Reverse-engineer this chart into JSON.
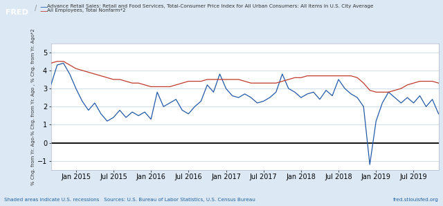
{
  "title_line1": "Advance Retail Sales: Retail and Food Services, Total-Consumer Price Index for All Urban Consumers: All Items in U.S. City Average",
  "title_line2": "All Employees, Total Nonfarm*2",
  "ylabel": "% Chg. from Yr. Ago-% Chg. from Yr. Ago , % Chg. from Yr. Ago*2",
  "footer_left": "Shaded areas indicate U.S. recessions   Sources: U.S. Bureau of Labor Statistics, U.S. Census Bureau",
  "footer_right": "fred.stlouisfed.org",
  "background_color": "#dce9f5",
  "plot_background": "#ffffff",
  "ylim": [
    -1.5,
    5.5
  ],
  "yticks": [
    -1,
    0,
    1,
    2,
    3,
    4,
    5
  ],
  "blue_color": "#2158a8",
  "red_color": "#c0392b",
  "zero_line_color": "#000000",
  "blue_values": [
    3.2,
    4.3,
    4.4,
    3.8,
    3.0,
    2.3,
    1.8,
    2.2,
    1.6,
    1.2,
    1.4,
    1.8,
    1.4,
    1.7,
    1.5,
    1.7,
    1.3,
    2.8,
    2.0,
    2.2,
    2.4,
    1.8,
    1.6,
    2.0,
    2.3,
    3.2,
    2.8,
    3.8,
    3.0,
    2.6,
    2.5,
    2.7,
    2.5,
    2.2,
    2.3,
    2.5,
    2.8,
    3.8,
    3.0,
    2.8,
    2.5,
    2.7,
    2.8,
    2.4,
    2.9,
    2.6,
    3.5,
    3.0,
    2.7,
    2.5,
    2.0,
    -1.2,
    1.2,
    2.2,
    2.8,
    2.5,
    2.2,
    2.5,
    2.2,
    2.6,
    2.0,
    2.4,
    1.6
  ],
  "red_values": [
    4.4,
    4.5,
    4.5,
    4.3,
    4.1,
    4.0,
    3.9,
    3.8,
    3.7,
    3.6,
    3.5,
    3.5,
    3.4,
    3.3,
    3.3,
    3.2,
    3.1,
    3.1,
    3.1,
    3.1,
    3.2,
    3.3,
    3.4,
    3.4,
    3.4,
    3.5,
    3.5,
    3.5,
    3.5,
    3.5,
    3.5,
    3.4,
    3.3,
    3.3,
    3.3,
    3.3,
    3.3,
    3.4,
    3.5,
    3.6,
    3.6,
    3.7,
    3.7,
    3.7,
    3.7,
    3.7,
    3.7,
    3.7,
    3.7,
    3.6,
    3.3,
    2.9,
    2.8,
    2.8,
    2.8,
    2.9,
    3.0,
    3.2,
    3.3,
    3.4,
    3.4,
    3.4,
    3.3
  ],
  "xtick_positions": [
    4,
    10,
    16,
    22,
    28,
    34,
    40,
    46,
    52,
    58
  ],
  "xtick_labels": [
    "Jan 2015",
    "Jul 2015",
    "Jan 2016",
    "Jul 2016",
    "Jan 2017",
    "Jul 2017",
    "Jan 2018",
    "Jul 2018",
    "Jan 2019",
    "Jul 2019"
  ]
}
